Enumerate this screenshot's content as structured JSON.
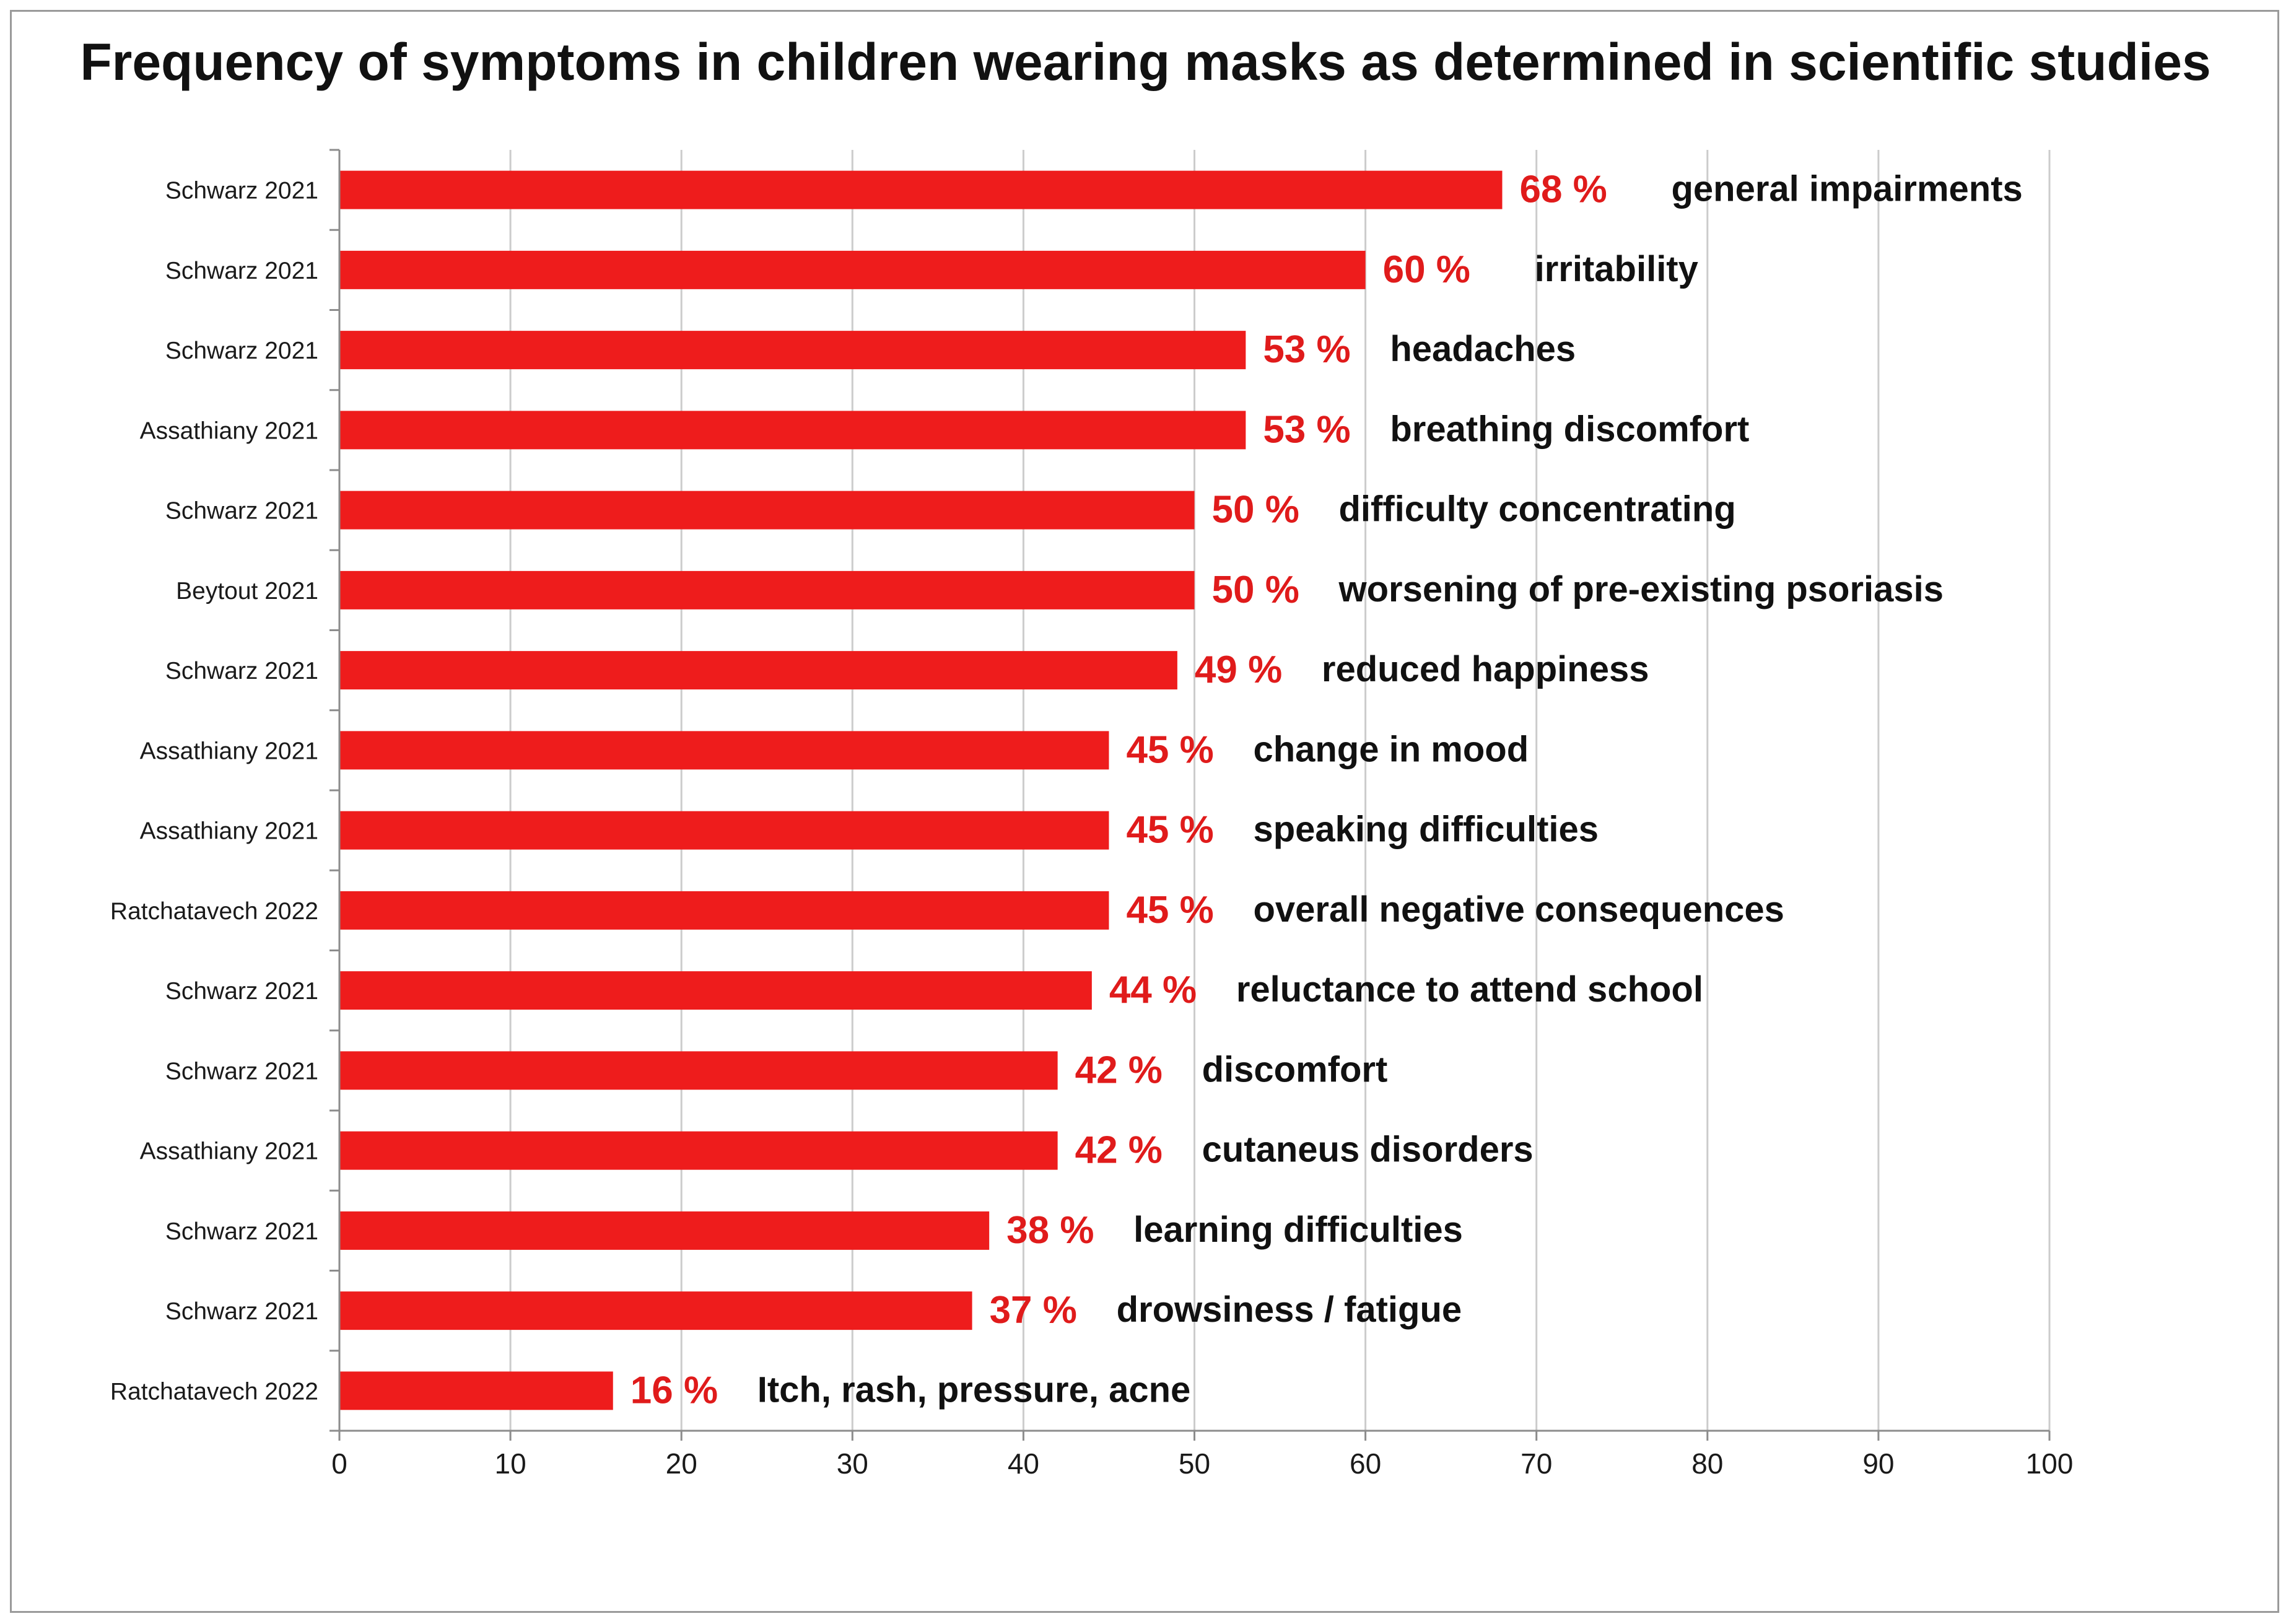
{
  "colors": {
    "bar": "#ee1c1c",
    "value_label": "#e01b1b",
    "grid": "#cccccc",
    "axis": "#8c8c8c"
  },
  "chart_data": {
    "type": "bar",
    "orientation": "horizontal",
    "title": "Frequency of symptoms in children wearing masks as determined in scientific studies",
    "xlabel": "",
    "ylabel": "",
    "xlim": [
      0,
      100
    ],
    "x_ticks": [
      0,
      10,
      20,
      30,
      40,
      50,
      60,
      70,
      80,
      90,
      100
    ],
    "grid": true,
    "value_suffix": " %",
    "categories": [
      "Schwarz 2021",
      "Schwarz 2021",
      "Schwarz 2021",
      "Assathiany 2021",
      "Schwarz 2021",
      "Beytout 2021",
      "Schwarz 2021",
      "Assathiany 2021",
      "Assathiany 2021",
      "Ratchatavech 2022",
      "Schwarz 2021",
      "Schwarz 2021",
      "Assathiany 2021",
      "Schwarz 2021",
      "Schwarz 2021",
      "Ratchatavech 2022"
    ],
    "values": [
      68,
      60,
      53,
      53,
      50,
      50,
      49,
      45,
      45,
      45,
      44,
      42,
      42,
      38,
      37,
      16
    ],
    "descriptions": [
      "general impairments",
      "irritability",
      "headaches",
      "breathing discomfort",
      "difficulty concentrating",
      "worsening of pre-existing psoriasis",
      "reduced happiness",
      "change in mood",
      "speaking difficulties",
      "overall negative consequences",
      "reluctance to attend school",
      "discomfort",
      "cutaneus disorders",
      "learning difficulties",
      "drowsiness / fatigue",
      "Itch, rash, pressure, acne"
    ]
  }
}
